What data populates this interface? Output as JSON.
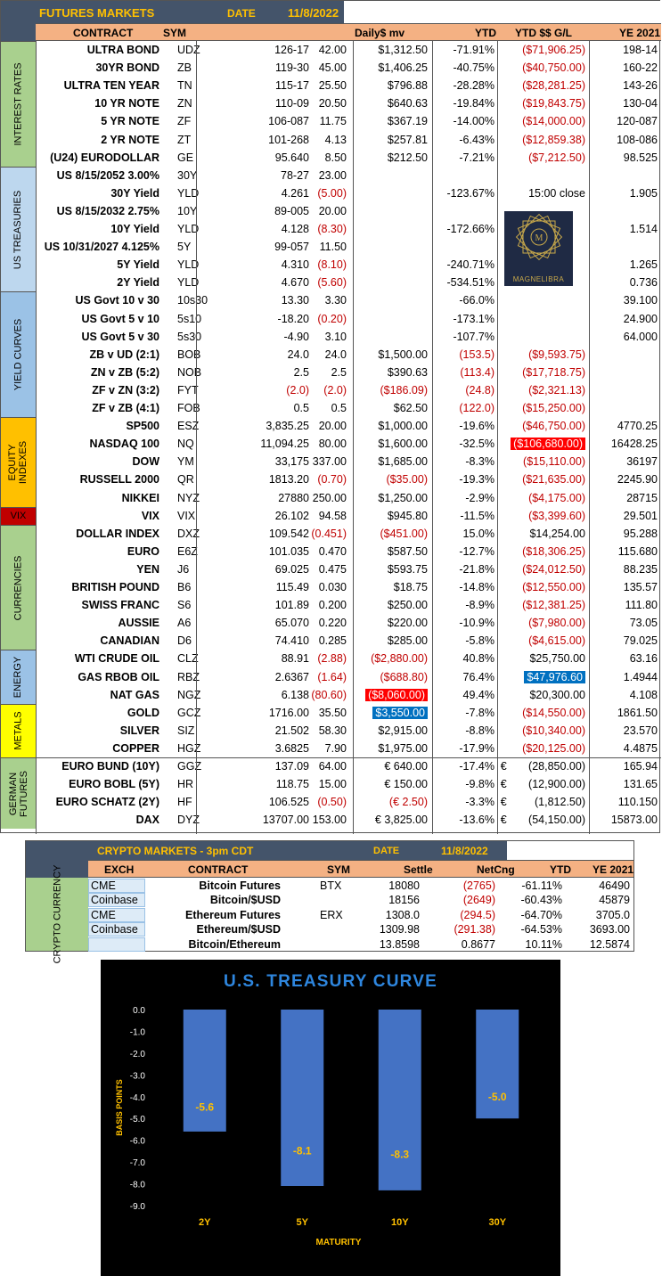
{
  "futures": {
    "title": "FUTURES MARKETS",
    "date_label": "DATE",
    "date": "11/8/2022",
    "headers": {
      "contract": "CONTRACT",
      "sym": "SYM",
      "daily_mv": "Daily$ mv",
      "ytd": "YTD",
      "ytd_pl": "YTD $$ G/L",
      "ye": "YE 2021"
    },
    "groups": [
      {
        "label": "INTEREST RATES",
        "color": "#a9d08e",
        "rows": 7
      },
      {
        "label": "US TREASURIES",
        "color": "#bdd7ee",
        "rows": 7
      },
      {
        "label": "YIELD CURVES",
        "color": "#9bc2e6",
        "rows": 7
      },
      {
        "label": "EQUITY INDEXES",
        "color": "#ffc000",
        "rows": 5
      },
      {
        "label": "VIX",
        "color": "#c00000",
        "rows": 1
      },
      {
        "label": "CURRENCIES",
        "color": "#a9d08e",
        "rows": 7
      },
      {
        "label": "ENERGY",
        "color": "#9bc2e6",
        "rows": 3
      },
      {
        "label": "METALS",
        "color": "#ffff00",
        "rows": 3
      },
      {
        "label": "GERMAN FUTURES",
        "color": "#a9d08e",
        "rows": 4
      }
    ],
    "rows": [
      {
        "name": "ULTRA BOND",
        "sym": "UDZ",
        "price": "126-17",
        "chg": "42.00",
        "dm": "$1,312.50",
        "ytd": "-71.91%",
        "pl": "($71,906.25)",
        "ye": "198-14"
      },
      {
        "name": "30YR BOND",
        "sym": "ZB",
        "price": "119-30",
        "chg": "45.00",
        "dm": "$1,406.25",
        "ytd": "-40.75%",
        "pl": "($40,750.00)",
        "ye": "160-22"
      },
      {
        "name": "ULTRA TEN YEAR",
        "sym": "TN",
        "price": "115-17",
        "chg": "25.50",
        "dm": "$796.88",
        "ytd": "-28.28%",
        "pl": "($28,281.25)",
        "ye": "143-26"
      },
      {
        "name": "10 YR NOTE",
        "sym": "ZN",
        "price": "110-09",
        "chg": "20.50",
        "dm": "$640.63",
        "ytd": "-19.84%",
        "pl": "($19,843.75)",
        "ye": "130-04"
      },
      {
        "name": "5 YR NOTE",
        "sym": "ZF",
        "price": "106-087",
        "chg": "11.75",
        "dm": "$367.19",
        "ytd": "-14.00%",
        "pl": "($14,000.00)",
        "ye": "120-087"
      },
      {
        "name": "2 YR NOTE",
        "sym": "ZT",
        "price": "101-268",
        "chg": "4.13",
        "dm": "$257.81",
        "ytd": "-6.43%",
        "pl": "($12,859.38)",
        "ye": "108-086"
      },
      {
        "name": "(U24) EURODOLLAR",
        "sym": "GE",
        "price": "95.640",
        "chg": "8.50",
        "dm": "$212.50",
        "ytd": "-7.21%",
        "pl": "($7,212.50)",
        "ye": "98.525"
      },
      {
        "name": "US 8/15/2052 3.00%",
        "sym": "30Y",
        "price": "78-27",
        "chg": "23.00",
        "dm": "",
        "ytd": "",
        "pl": "",
        "ye": ""
      },
      {
        "name": "30Y Yield",
        "sym": "YLD",
        "price": "4.261",
        "chg": "(5.00)",
        "dm": "",
        "ytd": "-123.67%",
        "pl": "15:00 close",
        "ye": "1.905"
      },
      {
        "name": "US 8/15/2032 2.75%",
        "sym": "10Y",
        "price": "89-005",
        "chg": "20.00",
        "dm": "",
        "ytd": "",
        "pl": "",
        "ye": ""
      },
      {
        "name": "10Y Yield",
        "sym": "YLD",
        "price": "4.128",
        "chg": "(8.30)",
        "dm": "",
        "ytd": "-172.66%",
        "pl": "",
        "ye": "1.514"
      },
      {
        "name": "US 10/31/2027 4.125%",
        "sym": "5Y",
        "price": "99-057",
        "chg": "11.50",
        "dm": "",
        "ytd": "",
        "pl": "",
        "ye": ""
      },
      {
        "name": "5Y Yield",
        "sym": "YLD",
        "price": "4.310",
        "chg": "(8.10)",
        "dm": "",
        "ytd": "-240.71%",
        "pl": "",
        "ye": "1.265"
      },
      {
        "name": "2Y Yield",
        "sym": "YLD",
        "price": "4.670",
        "chg": "(5.60)",
        "dm": "",
        "ytd": "-534.51%",
        "pl": "",
        "ye": "0.736"
      },
      {
        "name": "US Govt 10 v 30",
        "sym": "10s30",
        "price": "13.30",
        "chg": "3.30",
        "dm": "",
        "ytd": "-66.0%",
        "pl": "",
        "ye": "39.100"
      },
      {
        "name": "US Govt 5 v 10",
        "sym": "5s10",
        "price": "-18.20",
        "chg": "(0.20)",
        "dm": "",
        "ytd": "-173.1%",
        "pl": "",
        "ye": "24.900"
      },
      {
        "name": "US Govt 5 v 30",
        "sym": "5s30",
        "price": "-4.90",
        "chg": "3.10",
        "dm": "",
        "ytd": "-107.7%",
        "pl": "",
        "ye": "64.000"
      },
      {
        "name": "ZB v UD (2:1)",
        "sym": "BOB",
        "price": "24.0",
        "chg": "24.0",
        "dm": "$1,500.00",
        "ytd": "(153.5)",
        "pl": "($9,593.75)",
        "ye": ""
      },
      {
        "name": "ZN v ZB (5:2)",
        "sym": "NOB",
        "price": "2.5",
        "chg": "2.5",
        "dm": "$390.63",
        "ytd": "(113.4)",
        "pl": "($17,718.75)",
        "ye": ""
      },
      {
        "name": "ZF v ZN (3:2)",
        "sym": "FYT",
        "price": "(2.0)",
        "chg": "(2.0)",
        "dm": "($186.09)",
        "ytd": "(24.8)",
        "pl": "($2,321.13)",
        "ye": ""
      },
      {
        "name": "ZF v ZB (4:1)",
        "sym": "FOB",
        "price": "0.5",
        "chg": "0.5",
        "dm": "$62.50",
        "ytd": "(122.0)",
        "pl": "($15,250.00)",
        "ye": ""
      },
      {
        "name": "SP500",
        "sym": "ESZ",
        "price": "3,835.25",
        "chg": "20.00",
        "dm": "$1,000.00",
        "ytd": "-19.6%",
        "pl": "($46,750.00)",
        "ye": "4770.25"
      },
      {
        "name": "NASDAQ 100",
        "sym": "NQ",
        "price": "11,094.25",
        "chg": "80.00",
        "dm": "$1,600.00",
        "ytd": "-32.5%",
        "pl": "($106,680.00)",
        "ye": "16428.25"
      },
      {
        "name": "DOW",
        "sym": "YM",
        "price": "33,175",
        "chg": "337.00",
        "dm": "$1,685.00",
        "ytd": "-8.3%",
        "pl": "($15,110.00)",
        "ye": "36197"
      },
      {
        "name": "RUSSELL 2000",
        "sym": "QR",
        "price": "1813.20",
        "chg": "(0.70)",
        "dm": "($35.00)",
        "ytd": "-19.3%",
        "pl": "($21,635.00)",
        "ye": "2245.90"
      },
      {
        "name": "NIKKEI",
        "sym": "NYZ",
        "price": "27880",
        "chg": "250.00",
        "dm": "$1,250.00",
        "ytd": "-2.9%",
        "pl": "($4,175.00)",
        "ye": "28715"
      },
      {
        "name": "VIX",
        "sym": "VIX",
        "price": "26.102",
        "chg": "94.58",
        "dm": "$945.80",
        "ytd": "-11.5%",
        "pl": "($3,399.60)",
        "ye": "29.501"
      },
      {
        "name": "DOLLAR INDEX",
        "sym": "DXZ",
        "price": "109.542",
        "chg": "(0.451)",
        "dm": "($451.00)",
        "ytd": "15.0%",
        "pl": "$14,254.00",
        "ye": "95.288"
      },
      {
        "name": "EURO",
        "sym": "E6Z",
        "price": "101.035",
        "chg": "0.470",
        "dm": "$587.50",
        "ytd": "-12.7%",
        "pl": "($18,306.25)",
        "ye": "115.680"
      },
      {
        "name": "YEN",
        "sym": "J6",
        "price": "69.025",
        "chg": "0.475",
        "dm": "$593.75",
        "ytd": "-21.8%",
        "pl": "($24,012.50)",
        "ye": "88.235"
      },
      {
        "name": "BRITISH POUND",
        "sym": "B6",
        "price": "115.49",
        "chg": "0.030",
        "dm": "$18.75",
        "ytd": "-14.8%",
        "pl": "($12,550.00)",
        "ye": "135.57"
      },
      {
        "name": "SWISS FRANC",
        "sym": "S6",
        "price": "101.89",
        "chg": "0.200",
        "dm": "$250.00",
        "ytd": "-8.9%",
        "pl": "($12,381.25)",
        "ye": "111.80"
      },
      {
        "name": "AUSSIE",
        "sym": "A6",
        "price": "65.070",
        "chg": "0.220",
        "dm": "$220.00",
        "ytd": "-10.9%",
        "pl": "($7,980.00)",
        "ye": "73.05"
      },
      {
        "name": "CANADIAN",
        "sym": "D6",
        "price": "74.410",
        "chg": "0.285",
        "dm": "$285.00",
        "ytd": "-5.8%",
        "pl": "($4,615.00)",
        "ye": "79.025"
      },
      {
        "name": "WTI CRUDE OIL",
        "sym": "CLZ",
        "price": "88.91",
        "chg": "(2.88)",
        "dm": "($2,880.00)",
        "ytd": "40.8%",
        "pl": "$25,750.00",
        "ye": "63.16"
      },
      {
        "name": "GAS RBOB OIL",
        "sym": "RBZ",
        "price": "2.6367",
        "chg": "(1.64)",
        "dm": "($688.80)",
        "ytd": "76.4%",
        "pl": "$47,976.60",
        "ye": "1.4944"
      },
      {
        "name": "NAT GAS",
        "sym": "NGZ",
        "price": "6.138",
        "chg": "(80.60)",
        "dm": "($8,060.00)",
        "ytd": "49.4%",
        "pl": "$20,300.00",
        "ye": "4.108"
      },
      {
        "name": "GOLD",
        "sym": "GCZ",
        "price": "1716.00",
        "chg": "35.50",
        "dm": "$3,550.00",
        "ytd": "-7.8%",
        "pl": "($14,550.00)",
        "ye": "1861.50"
      },
      {
        "name": "SILVER",
        "sym": "SIZ",
        "price": "21.502",
        "chg": "58.30",
        "dm": "$2,915.00",
        "ytd": "-8.8%",
        "pl": "($10,340.00)",
        "ye": "23.570"
      },
      {
        "name": "COPPER",
        "sym": "HGZ",
        "price": "3.6825",
        "chg": "7.90",
        "dm": "$1,975.00",
        "ytd": "-17.9%",
        "pl": "($20,125.00)",
        "ye": "4.4875"
      },
      {
        "name": "EURO BUND (10Y)",
        "sym": "GGZ",
        "price": "137.09",
        "chg": "64.00",
        "dm": "€ 640.00",
        "ytd": "-17.4%",
        "pl": "€       (28,850.00)",
        "ye": "165.94"
      },
      {
        "name": "EURO BOBL (5Y)",
        "sym": "HR",
        "price": "118.75",
        "chg": "15.00",
        "dm": "€ 150.00",
        "ytd": "-9.8%",
        "pl": "€       (12,900.00)",
        "ye": "131.65"
      },
      {
        "name": "EURO SCHATZ (2Y)",
        "sym": "HF",
        "price": "106.525",
        "chg": "(0.50)",
        "dm": "(€ 2.50)",
        "ytd": "-3.3%",
        "pl": "€         (1,812.50)",
        "ye": "110.150"
      },
      {
        "name": "DAX",
        "sym": "DYZ",
        "price": "13707.00",
        "chg": "153.00",
        "dm": "€ 3,825.00",
        "ytd": "-13.6%",
        "pl": "€       (54,150.00)",
        "ye": "15873.00"
      }
    ],
    "logo_text": "MAGNELIBRA"
  },
  "crypto": {
    "title": "CRYPTO MARKETS - 3pm CDT",
    "date_label": "DATE",
    "date": "11/8/2022",
    "side_label": "CRYPTO CURRENCY",
    "headers": {
      "exch": "EXCH",
      "contract": "CONTRACT",
      "sym": "SYM",
      "settle": "Settle",
      "netchg": "NetCng",
      "ytd": "YTD",
      "ye": "YE 2021"
    },
    "rows": [
      {
        "exch": "CME",
        "contract": "Bitcoin Futures",
        "sym": "BTX",
        "settle": "18080",
        "net": "(2765)",
        "ytd": "-61.11%",
        "ye": "46490"
      },
      {
        "exch": "Coinbase",
        "contract": "Bitcoin/$USD",
        "sym": "",
        "settle": "18156",
        "net": "(2649)",
        "ytd": "-60.43%",
        "ye": "45879"
      },
      {
        "exch": "CME",
        "contract": "Ethereum Futures",
        "sym": "ERX",
        "settle": "1308.0",
        "net": "(294.5)",
        "ytd": "-64.70%",
        "ye": "3705.0"
      },
      {
        "exch": "Coinbase",
        "contract": "Ethereum/$USD",
        "sym": "",
        "settle": "1309.98",
        "net": "(291.38)",
        "ytd": "-64.53%",
        "ye": "3693.00"
      },
      {
        "exch": "",
        "contract": "Bitcoin/Ethereum",
        "sym": "",
        "settle": "13.8598",
        "net": "0.8677",
        "ytd": "10.11%",
        "ye": "12.5874"
      }
    ]
  },
  "chart_data": {
    "type": "bar",
    "title": "U.S. TREASURY CURVE",
    "xlabel": "MATURITY",
    "ylabel": "BASIS POINTS",
    "categories": [
      "2Y",
      "5Y",
      "10Y",
      "30Y"
    ],
    "values": [
      -5.6,
      -8.1,
      -8.3,
      -5.0
    ],
    "ylim": [
      -9.0,
      0.0
    ],
    "yticks": [
      "0.0",
      "-1.0",
      "-2.0",
      "-3.0",
      "-4.0",
      "-5.0",
      "-6.0",
      "-7.0",
      "-8.0",
      "-9.0"
    ],
    "data_labels": [
      "-5.6",
      "-8.1",
      "-8.3",
      "-5.0"
    ],
    "bar_color": "#4472c4",
    "label_color": "#ffc000",
    "title_color": "#2e86de",
    "background": "#000000"
  }
}
